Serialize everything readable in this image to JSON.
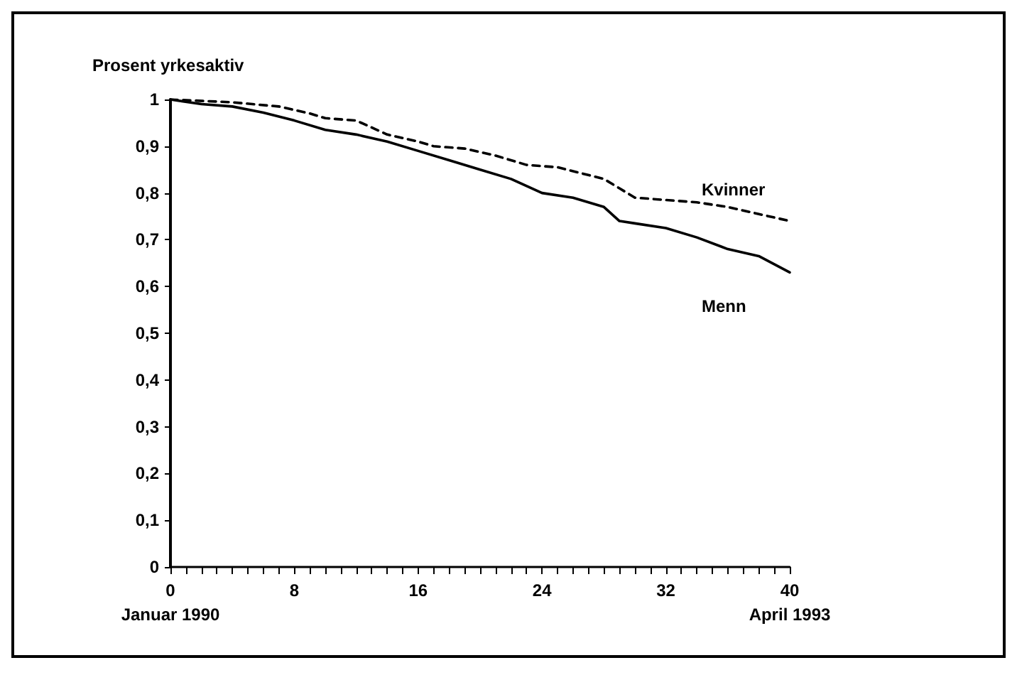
{
  "chart_data": {
    "type": "line",
    "ylabel": "Prosent yrkesaktiv",
    "xlim": [
      0,
      40
    ],
    "ylim": [
      0,
      1
    ],
    "xticks": [
      {
        "value": 0,
        "label": "0\nJanuar 1990"
      },
      {
        "value": 1,
        "label": null
      },
      {
        "value": 2,
        "label": null
      },
      {
        "value": 3,
        "label": null
      },
      {
        "value": 4,
        "label": null
      },
      {
        "value": 5,
        "label": null
      },
      {
        "value": 6,
        "label": null
      },
      {
        "value": 7,
        "label": null
      },
      8,
      {
        "value": 9,
        "label": null
      },
      {
        "value": 10,
        "label": null
      },
      {
        "value": 11,
        "label": null
      },
      {
        "value": 12,
        "label": null
      },
      {
        "value": 13,
        "label": null
      },
      {
        "value": 14,
        "label": null
      },
      {
        "value": 15,
        "label": null
      },
      16,
      {
        "value": 17,
        "label": null
      },
      {
        "value": 18,
        "label": null
      },
      {
        "value": 19,
        "label": null
      },
      {
        "value": 20,
        "label": null
      },
      {
        "value": 21,
        "label": null
      },
      {
        "value": 22,
        "label": null
      },
      {
        "value": 23,
        "label": null
      },
      24,
      {
        "value": 25,
        "label": null
      },
      {
        "value": 26,
        "label": null
      },
      {
        "value": 27,
        "label": null
      },
      {
        "value": 28,
        "label": null
      },
      {
        "value": 29,
        "label": null
      },
      {
        "value": 30,
        "label": null
      },
      {
        "value": 31,
        "label": null
      },
      32,
      {
        "value": 33,
        "label": null
      },
      {
        "value": 34,
        "label": null
      },
      {
        "value": 35,
        "label": null
      },
      {
        "value": 36,
        "label": null
      },
      {
        "value": 37,
        "label": null
      },
      {
        "value": 38,
        "label": null
      },
      {
        "value": 39,
        "label": null
      },
      {
        "value": 40,
        "label": "40\nApril 1993"
      }
    ],
    "yticks": [
      0,
      {
        "value": 0.1,
        "label": "0,1"
      },
      {
        "value": 0.2,
        "label": "0,2"
      },
      {
        "value": 0.3,
        "label": "0,3"
      },
      {
        "value": 0.4,
        "label": "0,4"
      },
      {
        "value": 0.5,
        "label": "0,5"
      },
      {
        "value": 0.6,
        "label": "0,6"
      },
      {
        "value": 0.7,
        "label": "0,7"
      },
      {
        "value": 0.8,
        "label": "0,8"
      },
      {
        "value": 0.9,
        "label": "0,9"
      },
      1
    ],
    "grid": false,
    "legend": false,
    "marker": "none",
    "series": [
      {
        "name": "Kvinner",
        "color": "#000000",
        "line_style": "dashed",
        "x": [
          0,
          4,
          7,
          9,
          10,
          12,
          14,
          16,
          17,
          19,
          21,
          23,
          25,
          28,
          29,
          30,
          32,
          34,
          36,
          38,
          40
        ],
        "values": [
          1.0,
          0.994,
          0.985,
          0.97,
          0.96,
          0.955,
          0.925,
          0.91,
          0.9,
          0.895,
          0.88,
          0.86,
          0.855,
          0.83,
          0.81,
          0.79,
          0.785,
          0.78,
          0.77,
          0.755,
          0.74
        ]
      },
      {
        "name": "Menn",
        "color": "#000000",
        "line_style": "solid",
        "x": [
          0,
          2,
          4,
          6,
          8,
          10,
          12,
          14,
          16,
          18,
          20,
          22,
          24,
          26,
          28,
          29,
          30,
          32,
          34,
          36,
          38,
          40
        ],
        "values": [
          1.0,
          0.99,
          0.985,
          0.972,
          0.955,
          0.935,
          0.925,
          0.91,
          0.89,
          0.87,
          0.85,
          0.83,
          0.8,
          0.79,
          0.77,
          0.74,
          0.735,
          0.725,
          0.705,
          0.68,
          0.665,
          0.63
        ]
      }
    ]
  }
}
